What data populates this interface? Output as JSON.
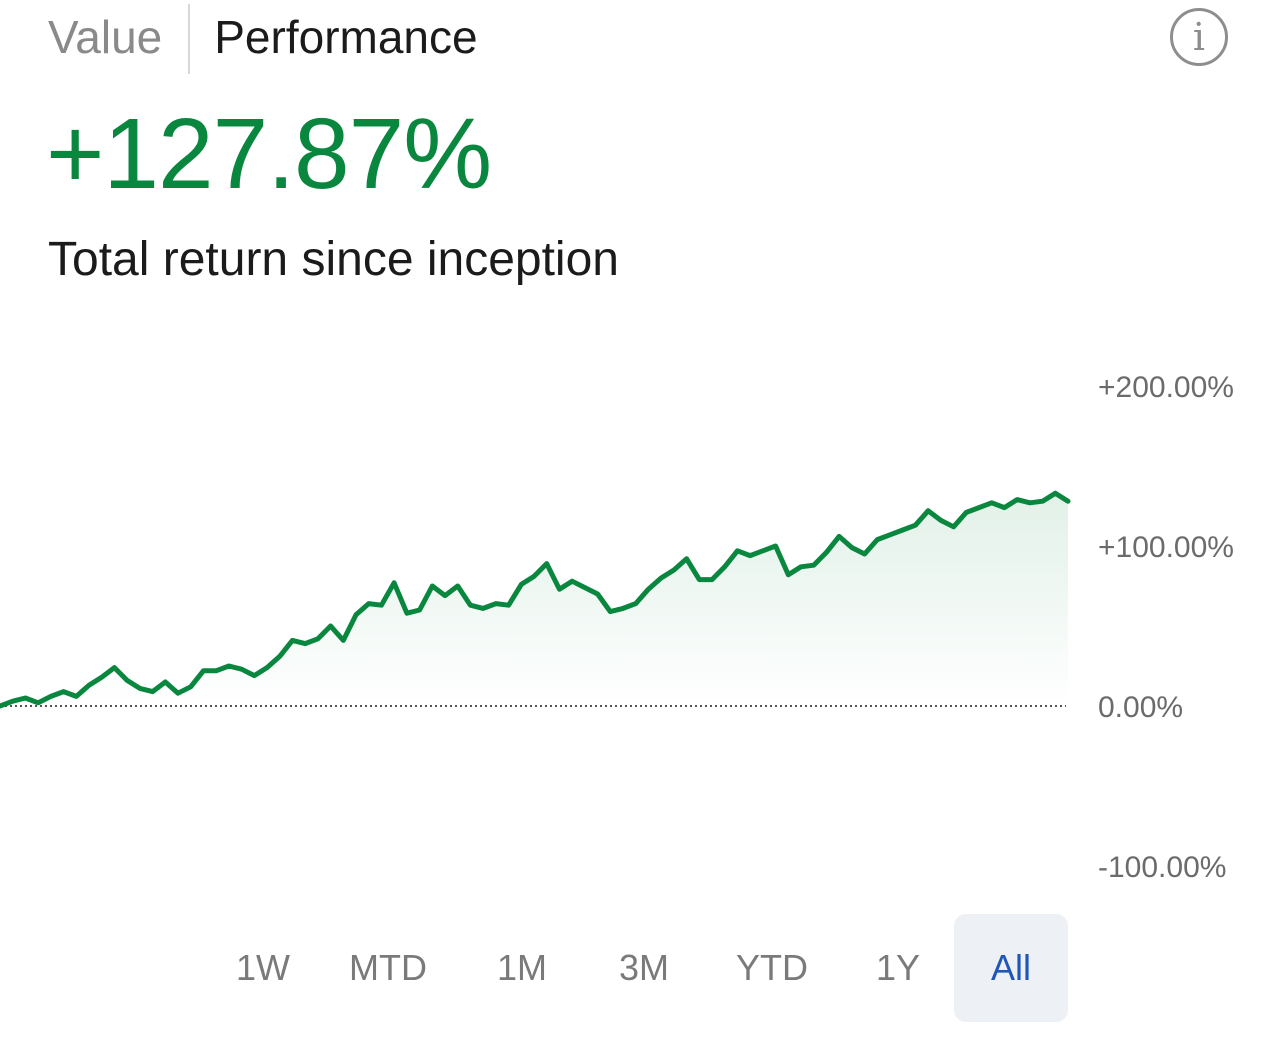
{
  "tabs": {
    "value": "Value",
    "performance": "Performance",
    "active": "Performance"
  },
  "info_icon": {
    "name": "info-icon",
    "glyph": "i"
  },
  "summary": {
    "return_value": "+127.87%",
    "caption": "Total return since inception"
  },
  "colors": {
    "positive": "#0a873f",
    "active_range_text": "#1f57b8",
    "active_range_bg": "#edf0f5"
  },
  "chart_data": {
    "type": "area",
    "y_tick_labels": [
      "+200.00%",
      "+100.00%",
      "0.00%",
      "-100.00%"
    ],
    "y_ticks": [
      200,
      100,
      0,
      -100
    ],
    "ylim": [
      -100,
      200
    ],
    "baseline": 0,
    "series": [
      {
        "values": [
          0,
          3,
          5,
          2,
          6,
          9,
          6,
          13,
          18,
          24,
          16,
          11,
          9,
          15,
          8,
          12,
          22,
          22,
          25,
          23,
          19,
          24,
          31,
          41,
          39,
          42,
          50,
          41,
          57,
          64,
          63,
          77,
          58,
          60,
          75,
          69,
          75,
          63,
          61,
          64,
          63,
          76,
          81,
          89,
          73,
          78,
          74,
          70,
          59,
          61,
          64,
          73,
          80,
          85,
          92,
          79,
          79,
          87,
          97,
          94,
          97,
          100,
          82,
          87,
          88,
          96,
          106,
          99,
          95,
          104,
          107,
          110,
          113,
          122,
          116,
          112,
          121,
          124,
          127,
          124,
          129,
          127,
          128,
          133,
          128
        ]
      }
    ]
  },
  "ranges": [
    {
      "label": "1W"
    },
    {
      "label": "MTD"
    },
    {
      "label": "1M"
    },
    {
      "label": "3M"
    },
    {
      "label": "YTD"
    },
    {
      "label": "1Y"
    },
    {
      "label": "All"
    }
  ],
  "active_range": "All"
}
